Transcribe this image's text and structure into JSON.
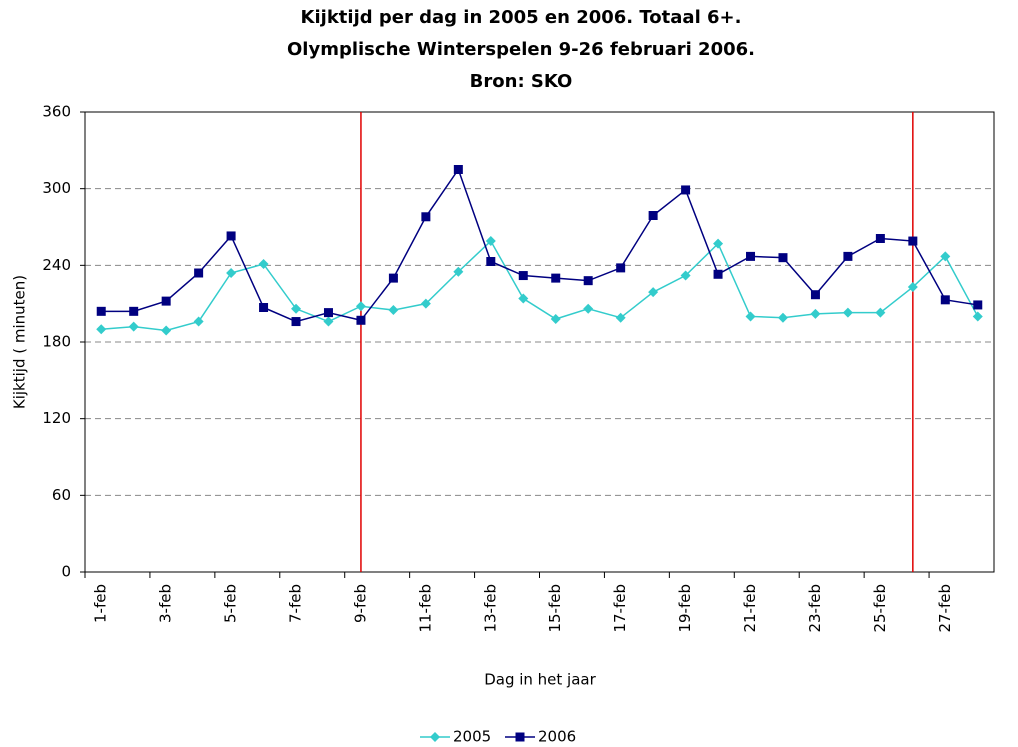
{
  "chart_data": {
    "type": "line",
    "title": [
      "Kijktijd per dag in 2005 en 2006. Totaal 6+.",
      "Olymplische Winterspelen 9-26 februari 2006.",
      "Bron: SKO"
    ],
    "xlabel": "Dag in het jaar",
    "ylabel": "Kijktijd ( minuten)",
    "categories": [
      "1-feb",
      null,
      "3-feb",
      null,
      "5-feb",
      null,
      "7-feb",
      null,
      "9-feb",
      null,
      "11-feb",
      null,
      "13-feb",
      null,
      "15-feb",
      null,
      "17-feb",
      null,
      "19-feb",
      null,
      "21-feb",
      null,
      "23-feb",
      null,
      "25-feb",
      null,
      "27-feb",
      null
    ],
    "series": [
      {
        "name": "2005",
        "color": "#33cccc",
        "marker": "diamond",
        "values": [
          190,
          192,
          189,
          196,
          234,
          241,
          206,
          196,
          208,
          205,
          210,
          235,
          259,
          214,
          198,
          206,
          199,
          219,
          232,
          257,
          200,
          199,
          202,
          203,
          203,
          223,
          247,
          200
        ]
      },
      {
        "name": "2006",
        "color": "#000080",
        "marker": "square",
        "values": [
          204,
          204,
          212,
          234,
          263,
          207,
          196,
          203,
          197,
          230,
          278,
          315,
          243,
          232,
          230,
          228,
          238,
          279,
          299,
          233,
          247,
          246,
          217,
          247,
          261,
          259,
          213,
          209
        ]
      }
    ],
    "event_lines": {
      "color": "#e00000",
      "at": [
        8,
        25
      ]
    },
    "ylim": [
      0,
      360
    ],
    "yticks": [
      0,
      60,
      120,
      180,
      240,
      300,
      360
    ],
    "grid": true,
    "legend": "bottom"
  }
}
